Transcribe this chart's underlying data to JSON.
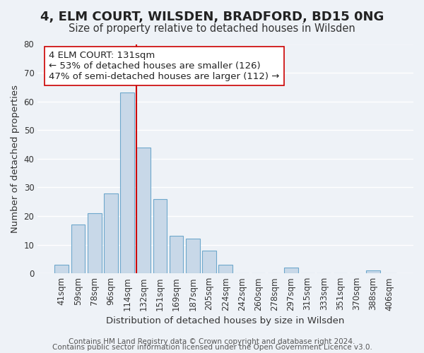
{
  "title": "4, ELM COURT, WILSDEN, BRADFORD, BD15 0NG",
  "subtitle": "Size of property relative to detached houses in Wilsden",
  "xlabel": "Distribution of detached houses by size in Wilsden",
  "ylabel": "Number of detached properties",
  "categories": [
    "41sqm",
    "59sqm",
    "78sqm",
    "96sqm",
    "114sqm",
    "132sqm",
    "151sqm",
    "169sqm",
    "187sqm",
    "205sqm",
    "224sqm",
    "242sqm",
    "260sqm",
    "278sqm",
    "297sqm",
    "315sqm",
    "333sqm",
    "351sqm",
    "370sqm",
    "388sqm",
    "406sqm"
  ],
  "values": [
    3,
    17,
    21,
    28,
    63,
    44,
    26,
    13,
    12,
    8,
    3,
    0,
    0,
    0,
    2,
    0,
    0,
    0,
    0,
    1,
    0
  ],
  "bar_color": "#c8d8e8",
  "bar_edge_color": "#6ea8cc",
  "vline_x": 4.575,
  "vline_color": "#cc0000",
  "ylim": [
    0,
    80
  ],
  "yticks": [
    0,
    10,
    20,
    30,
    40,
    50,
    60,
    70,
    80
  ],
  "annotation_box_text": "4 ELM COURT: 131sqm\n← 53% of detached houses are smaller (126)\n47% of semi-detached houses are larger (112) →",
  "annotation_box_edgecolor": "#cc0000",
  "footer_line1": "Contains HM Land Registry data © Crown copyright and database right 2024.",
  "footer_line2": "Contains public sector information licensed under the Open Government Licence v3.0.",
  "background_color": "#eef2f7",
  "grid_color": "#ffffff",
  "title_fontsize": 13,
  "subtitle_fontsize": 10.5,
  "axis_label_fontsize": 9.5,
  "tick_label_fontsize": 8.5,
  "annotation_fontsize": 9.5,
  "footer_fontsize": 7.5
}
